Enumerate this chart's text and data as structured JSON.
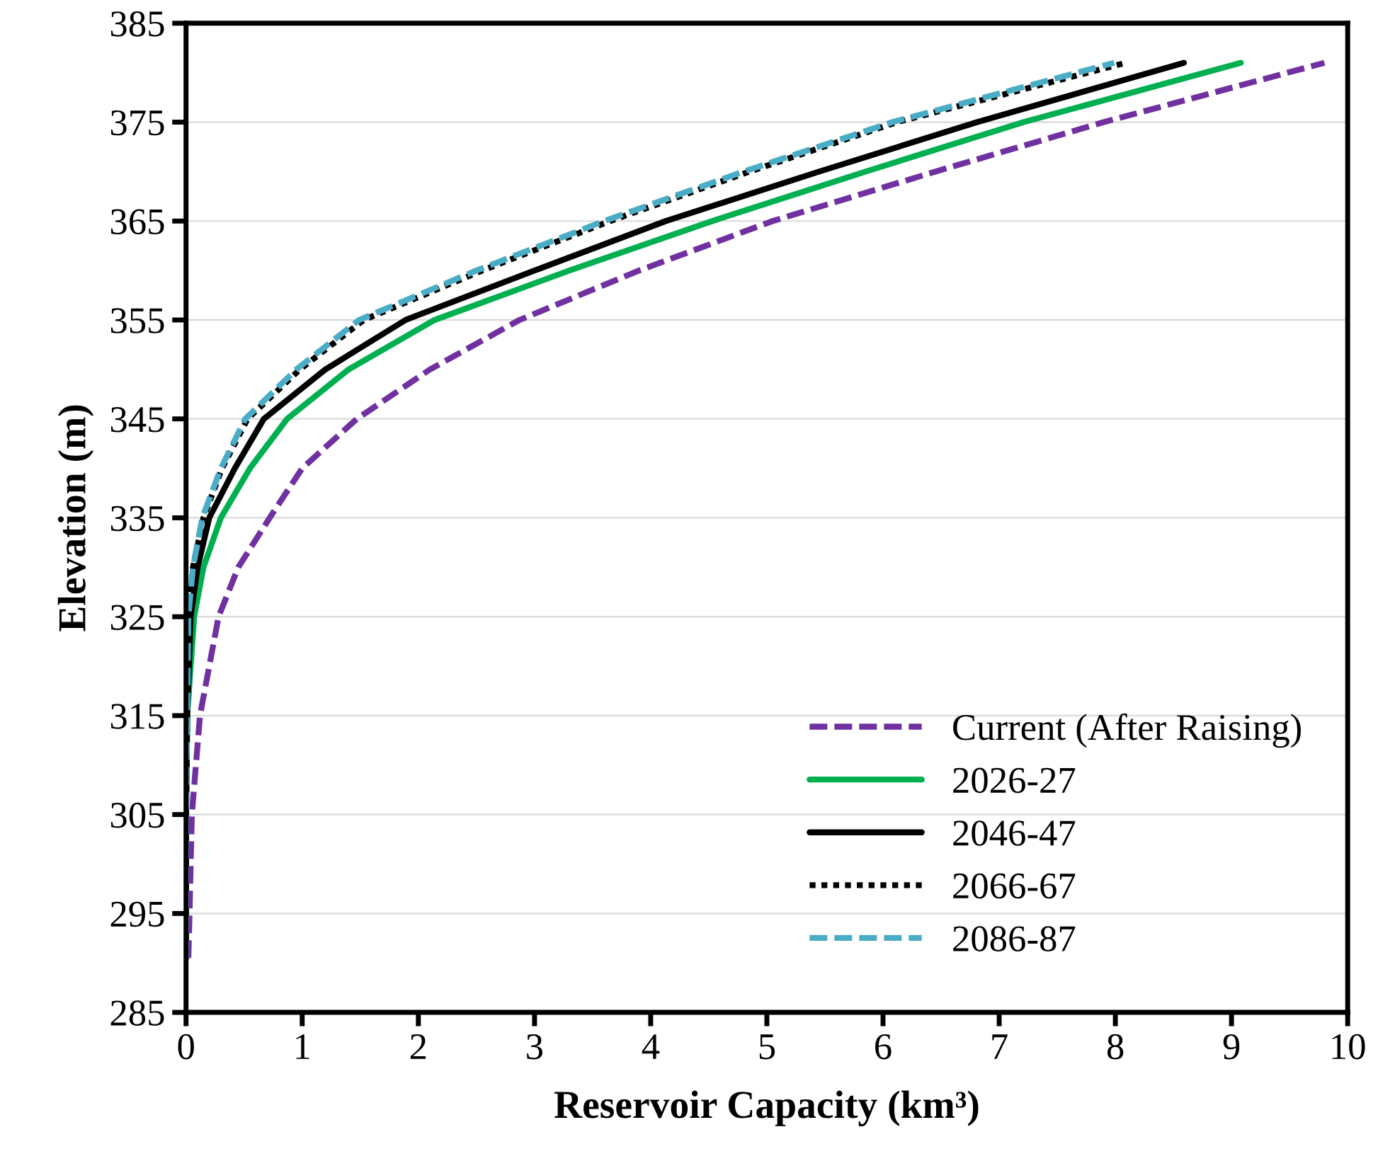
{
  "chart_data": {
    "type": "line",
    "xlabel": "Reservoir Capacity (km³)",
    "ylabel": "Elevation (m)",
    "xlim": [
      0,
      10
    ],
    "xticks": [
      0,
      1,
      2,
      3,
      4,
      5,
      6,
      7,
      8,
      9,
      10
    ],
    "ylim": [
      285,
      385
    ],
    "yticks": [
      285,
      295,
      305,
      315,
      325,
      335,
      345,
      355,
      365,
      375,
      385
    ],
    "grid": "y",
    "legend": "bottom right",
    "series": [
      {
        "name": "Current (After Raising)",
        "color": "#7030a0",
        "line_style": "dashed",
        "x": [
          0.02,
          0.03,
          0.05,
          0.12,
          0.28,
          0.45,
          0.72,
          1.0,
          1.47,
          2.1,
          2.87,
          3.9,
          5.05,
          6.45,
          7.9,
          9.8
        ],
        "values": [
          290.5,
          295,
          305,
          315,
          325,
          330,
          335,
          340,
          345,
          350,
          355,
          360,
          365,
          370,
          375,
          381
        ]
      },
      {
        "name": "2026-27",
        "color": "#00b050",
        "line_style": "solid",
        "x": [
          0,
          0,
          0.01,
          0.07,
          0.15,
          0.3,
          0.55,
          0.87,
          1.4,
          2.14,
          3.3,
          4.53,
          5.85,
          7.21,
          9.08
        ],
        "values": [
          290.5,
          305,
          315,
          325,
          330,
          335,
          340,
          345,
          350,
          355,
          360,
          365,
          370,
          375,
          381
        ]
      },
      {
        "name": "2046-47",
        "color": "#000000",
        "line_style": "solid",
        "x": [
          0,
          0,
          0.01,
          0.04,
          0.1,
          0.2,
          0.42,
          0.67,
          1.2,
          1.89,
          3.0,
          4.13,
          5.45,
          6.81,
          8.59
        ],
        "values": [
          290.5,
          305,
          315,
          325,
          330,
          335,
          340,
          345,
          350,
          355,
          360,
          365,
          370,
          375,
          381
        ]
      },
      {
        "name": "2066-67",
        "color": "#000000",
        "line_style": "dotted",
        "x": [
          0,
          0,
          0.01,
          0.02,
          0.06,
          0.15,
          0.31,
          0.53,
          0.98,
          1.53,
          2.55,
          3.65,
          4.85,
          6.12,
          8.09
        ],
        "values": [
          290.5,
          305,
          315,
          325,
          330,
          335,
          340,
          345,
          350,
          355,
          360,
          365,
          370,
          375,
          381
        ]
      },
      {
        "name": "2086-87",
        "color": "#4bacc6",
        "line_style": "dashed",
        "x": [
          0,
          0,
          0.01,
          0.02,
          0.06,
          0.14,
          0.3,
          0.51,
          0.95,
          1.49,
          2.5,
          3.6,
          4.8,
          6.08,
          7.99
        ],
        "values": [
          290.5,
          305,
          315,
          325,
          330,
          335,
          340,
          345,
          350,
          355,
          360,
          365,
          370,
          375,
          381
        ]
      }
    ]
  }
}
